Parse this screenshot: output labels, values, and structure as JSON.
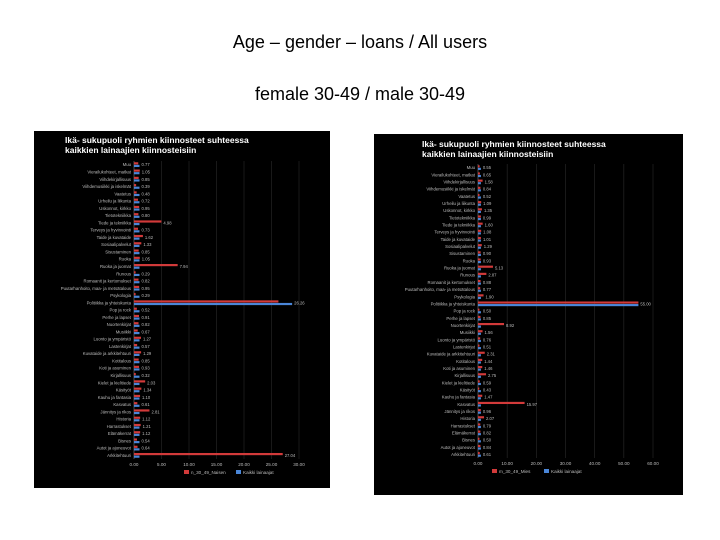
{
  "slide": {
    "title": "Age – gender – loans / All users",
    "subtitle": "female 30-49 / male 30-49"
  },
  "colors": {
    "panel_bg": "#000000",
    "text": "#bbbbbb",
    "title_text": "#ffffff",
    "series_group": "#d23a3a",
    "series_all": "#4a86d8"
  },
  "chart_data": [
    {
      "type": "bar",
      "orientation": "horizontal",
      "title": "Ikä- sukupuoli ryhmien kiinnosteet suhteessa kaikkien lainaajien kiinnosteisiin",
      "title_lines": [
        "Ikä- sukupuoli ryhmien kiinnosteet suhteessa",
        "kaikkien lainaajien kiinnosteisiin"
      ],
      "xlim": [
        0,
        30
      ],
      "xticks": [
        "0.00",
        "5.00",
        "10.00",
        "15.00",
        "20.00",
        "25.00",
        "30.00"
      ],
      "categories": [
        "Muu",
        "Vierailukohteet, matkat",
        "Viihdekirjallisuus",
        "Viihdemusiikki ja iskelmät",
        "Vaatetus",
        "Urheilu ja liikunta",
        "Uskonnot, kirkko",
        "Tietotekniikka",
        "Tiede ja tekniikka",
        "Terveys ja hyvinvointi",
        "Taide ja kuvataide",
        "Sosiaalipalvelut",
        "Sisustaminen",
        "Ruoka",
        "Ruoka ja juomat",
        "Runous",
        "Romaanit ja kertomukset",
        "Puutarhanhoito, maa- ja metsätalous",
        "Psykologia",
        "Politiikka ja yhteiskunta",
        "Pop ja rock",
        "Perhe ja lapset",
        "Nuortenkirjat",
        "Musiikki",
        "Luonto ja ympäristö",
        "Lastenkirjat",
        "Kuvataide ja arkkitehtuuri",
        "Kotitalous",
        "Koti ja asuminen",
        "Kirjallisuus",
        "Kielet ja kielitiede",
        "Käsityöt",
        "Kauhu ja fantasia",
        "Kasvatus",
        "Jännitys ja rikos",
        "Historia",
        "Harrastukset",
        "Elämäkerrat",
        "Bisnes",
        "Autot ja ajoneuvot",
        "Arkkitehtuuri"
      ],
      "series": [
        {
          "name": "n_30_49_Naisen",
          "values": [
            0.77,
            1.05,
            0.85,
            0.39,
            0.48,
            0.72,
            0.95,
            0.8,
            4.98,
            0.73,
            1.62,
            1.33,
            0.85,
            1.05,
            7.94,
            0.29,
            0.82,
            0.95,
            0.29,
            26.26,
            0.52,
            0.91,
            0.82,
            0.67,
            1.27,
            0.57,
            1.29,
            0.85,
            0.93,
            0.32,
            2.03,
            1.34,
            1.1,
            0.61,
            2.81,
            1.12,
            1.21,
            1.12,
            0.54,
            0.64,
            27.04
          ]
        },
        {
          "name": "Kaikki lainaajat",
          "values": [
            1,
            1,
            1,
            1,
            1,
            1,
            1,
            1,
            1,
            1,
            1,
            1,
            1,
            1,
            1,
            1,
            1,
            1,
            1,
            28.75,
            1,
            1,
            1,
            1,
            1,
            1,
            1,
            1,
            1,
            1,
            1,
            1,
            1,
            1,
            1,
            1,
            1,
            1,
            1,
            1,
            1
          ]
        }
      ],
      "legend": [
        "n_30_49_Naisen",
        "Kaikki lainaajat"
      ],
      "legend_position": "bottom"
    },
    {
      "type": "bar",
      "orientation": "horizontal",
      "title": "Ikä- sukupuoli ryhmien kiinnosteet suhteessa kaikkien lainaajien kiinnosteisiin",
      "title_lines": [
        "Ikä- sukupuoli ryhmien kiinnosteet suhteessa",
        "kaikkien lainaajien kiinnosteisiin"
      ],
      "xlim": [
        0,
        60
      ],
      "xticks": [
        "0.00",
        "10.00",
        "20.00",
        "30.00",
        "40.00",
        "50.00",
        "60.00"
      ],
      "categories": [
        "Muu",
        "Vierailukohteet, matkat",
        "Viihdekirjallisuus",
        "Viihdemusiikki ja iskelmät",
        "Vaatetus",
        "Urheilu ja liikunta",
        "Uskonnot, kirkko",
        "Tietotekniikka",
        "Tiede ja tekniikka",
        "Terveys ja hyvinvointi",
        "Taide ja kuvataide",
        "Sosiaalipalvelut",
        "Sisustaminen",
        "Ruoka",
        "Ruoka ja juomat",
        "Runous",
        "Romaanit ja kertomukset",
        "Puutarhanhoito, maa- ja metsätalous",
        "Psykologia",
        "Politiikka ja yhteiskunta",
        "Pop ja rock",
        "Perhe ja lapset",
        "Nuortenkirjat",
        "Musiikki",
        "Luonto ja ympäristö",
        "Lastenkirjat",
        "Kuvataide ja arkkitehtuuri",
        "Kotitalous",
        "Koti ja asuminen",
        "Kirjallisuus",
        "Kielet ja kielitiede",
        "Käsityöt",
        "Kauhu ja fantasia",
        "Kasvatus",
        "Jännitys ja rikos",
        "Historia",
        "Harrastukset",
        "Elämäkerrat",
        "Bisnes",
        "Autot ja ajoneuvot",
        "Arkkitehtuuri"
      ],
      "series": [
        {
          "name": "m_30_49_Mies",
          "values": [
            0.55,
            0.65,
            1.58,
            0.84,
            0.52,
            1.09,
            1.35,
            0.99,
            1.6,
            1.08,
            1.01,
            1.29,
            0.9,
            0.93,
            5.13,
            2.87,
            0.88,
            0.77,
            1.9,
            55,
            0.5,
            0.85,
            8.92,
            1.56,
            0.76,
            0.51,
            2.31,
            1.44,
            1.46,
            2.75,
            0.59,
            0.43,
            1.47,
            15.97,
            0.96,
            2.07,
            0.79,
            0.82,
            0.5,
            0.84,
            0.61
          ]
        },
        {
          "name": "Kaikki lainaajat",
          "values": [
            1,
            1,
            1,
            1,
            1,
            1,
            1,
            1,
            1,
            1,
            1,
            1,
            1,
            1,
            1,
            1,
            1,
            1,
            1,
            55,
            1,
            1,
            1,
            1,
            1,
            1,
            1,
            1,
            1,
            1,
            1,
            1,
            1,
            1,
            1,
            1,
            1,
            1,
            1,
            1,
            1
          ]
        }
      ],
      "legend": [
        "m_30_49_Mies",
        "Kaikki lainaajat"
      ],
      "legend_position": "bottom"
    }
  ]
}
